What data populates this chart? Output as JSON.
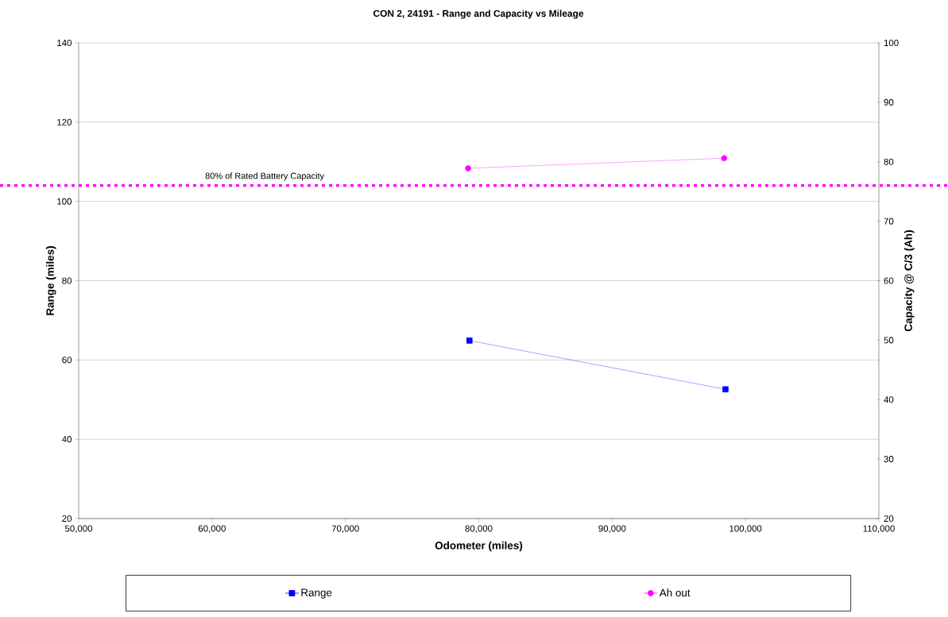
{
  "chart_data": {
    "type": "line",
    "title": "CON 2, 24191 - Range and Capacity vs Mileage",
    "xlabel": "Odometer (miles)",
    "ylabel": "Range (miles)",
    "y2label": "Capacity @ C/3 (Ah)",
    "xlim": [
      50000,
      110000
    ],
    "xticks": [
      {
        "value": 50000,
        "label": "50,000"
      },
      {
        "value": 60000,
        "label": "60,000"
      },
      {
        "value": 70000,
        "label": "70,000"
      },
      {
        "value": 80000,
        "label": "80,000"
      },
      {
        "value": 90000,
        "label": "90,000"
      },
      {
        "value": 100000,
        "label": "100,000"
      },
      {
        "value": 110000,
        "label": "110,000"
      }
    ],
    "ylim": [
      20,
      140
    ],
    "yticks": [
      20,
      40,
      60,
      80,
      100,
      120,
      140
    ],
    "y2lim": [
      20,
      100
    ],
    "y2ticks": [
      20,
      30,
      40,
      50,
      60,
      70,
      80,
      90,
      100
    ],
    "series": [
      {
        "name": "Range",
        "color": "#0000ff",
        "marker": "square",
        "x": [
          79300,
          98500
        ],
        "values": [
          64.9,
          52.6
        ]
      },
      {
        "name": "Ah out",
        "color": "#ff00ff",
        "marker": "circle",
        "axis": "y2",
        "x": [
          79200,
          98400
        ],
        "values": [
          78.9,
          80.6
        ]
      }
    ],
    "ref_lines": [
      {
        "axis": "y2",
        "value": 76,
        "label": "80% of Rated Battery  Capacity",
        "color": "#ff00ff",
        "line_style": "dotted"
      }
    ],
    "grid": "y",
    "legend": "bottom"
  }
}
